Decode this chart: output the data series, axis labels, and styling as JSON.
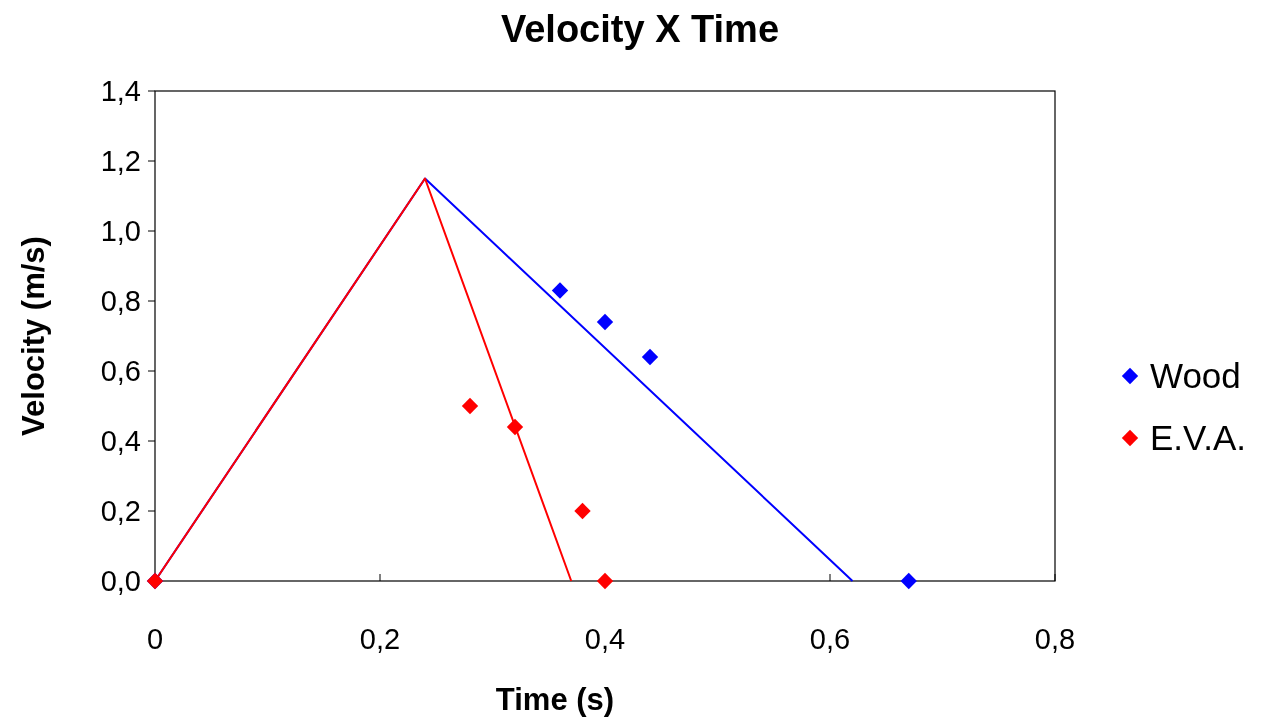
{
  "chart_data": {
    "type": "scatter",
    "title": "Velocity X Time",
    "xlabel": "Time (s)",
    "ylabel": "Velocity (m/s)",
    "xlim": [
      0,
      0.8
    ],
    "xticks": [
      0,
      {
        "value": 0.2,
        "label": "0,2"
      },
      {
        "value": 0.4,
        "label": "0,4"
      },
      {
        "value": 0.6,
        "label": "0,6"
      },
      {
        "value": 0.8,
        "label": "0,8"
      }
    ],
    "ylim": [
      0,
      1.4
    ],
    "yticks": [
      {
        "value": 0,
        "label": "0,0"
      },
      {
        "value": 0.2,
        "label": "0,2"
      },
      {
        "value": 0.4,
        "label": "0,4"
      },
      {
        "value": 0.6,
        "label": "0,6"
      },
      {
        "value": 0.8,
        "label": "0,8"
      },
      {
        "value": 1,
        "label": "1,0"
      },
      {
        "value": 1.2,
        "label": "1,2"
      },
      {
        "value": 1.4,
        "label": "1,4"
      }
    ],
    "grid": false,
    "legend": "right",
    "marker": "diamond",
    "series": [
      {
        "type": "line",
        "color": "#0000ff",
        "x": [
          0,
          0.24,
          0.62
        ],
        "values": [
          0,
          1.15,
          0
        ],
        "marker": "none"
      },
      {
        "type": "line",
        "color": "#ff0000",
        "x": [
          0,
          0.24,
          0.37
        ],
        "values": [
          0,
          1.15,
          0
        ],
        "marker": "none"
      },
      {
        "name": "Wood",
        "color": "#0000ff",
        "x": [
          0,
          0.36,
          0.4,
          0.44,
          0.67
        ],
        "values": [
          0,
          0.83,
          0.74,
          0.64,
          0
        ]
      },
      {
        "name": "E.V.A.",
        "color": "#ff0000",
        "x": [
          0,
          0.28,
          0.32,
          0.38,
          0.4
        ],
        "values": [
          0,
          0.5,
          0.44,
          0.2,
          0
        ]
      }
    ]
  }
}
